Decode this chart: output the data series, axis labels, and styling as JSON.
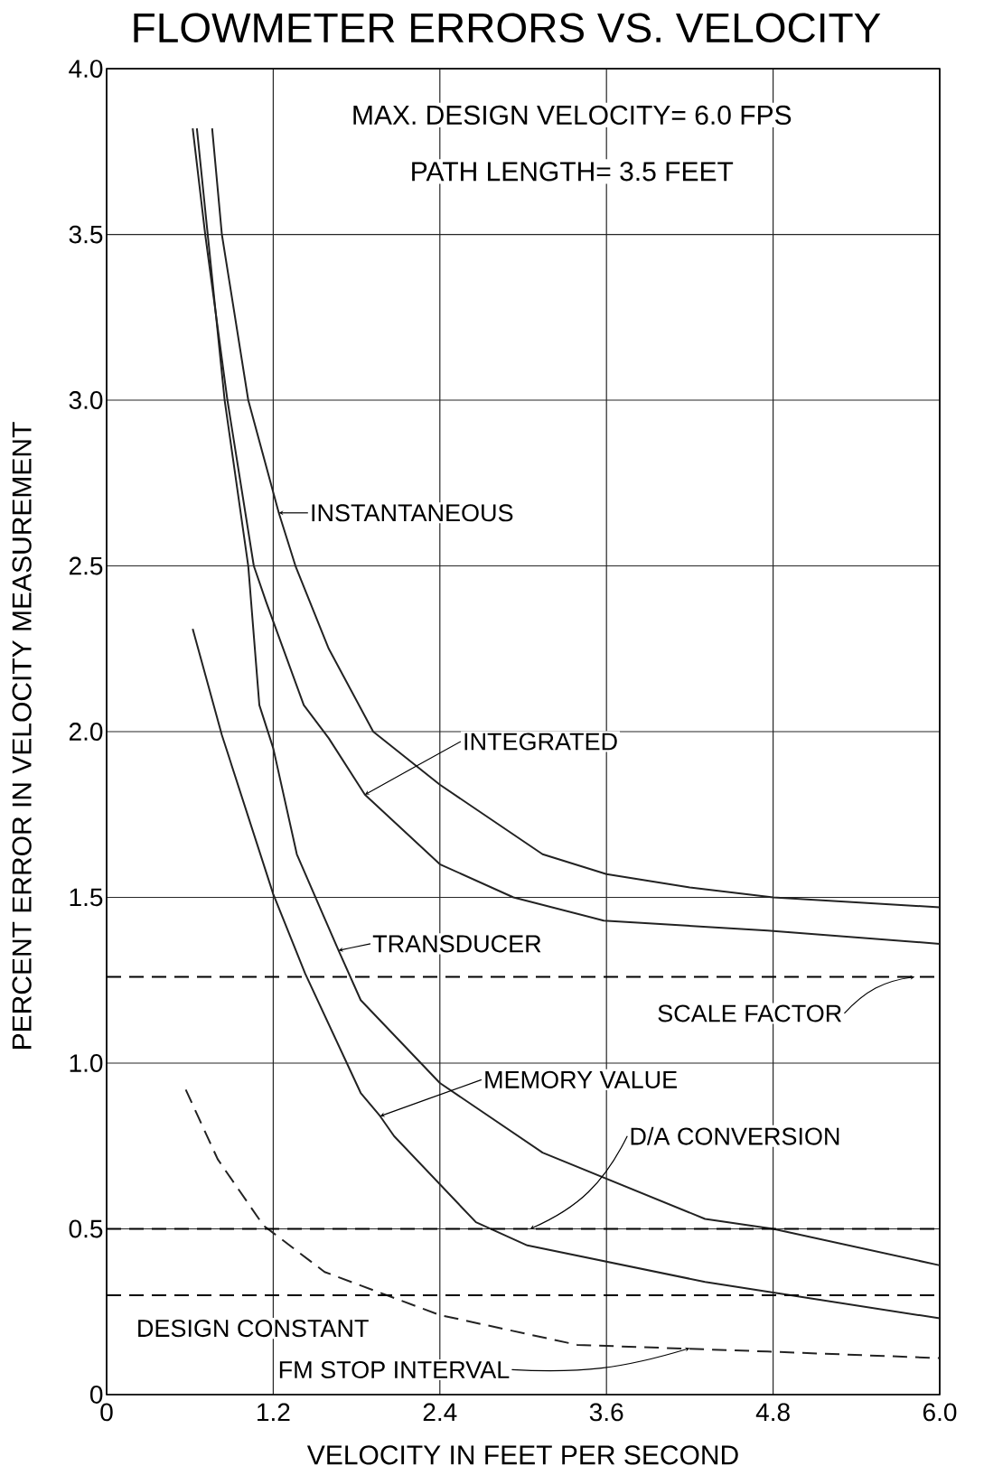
{
  "chart_data": {
    "type": "line",
    "title": "FLOWMETER ERRORS VS. VELOCITY",
    "xlabel": "VELOCITY IN FEET PER SECOND",
    "ylabel": "PERCENT ERROR IN VELOCITY MEASUREMENT",
    "annotations": [
      "MAX. DESIGN VELOCITY= 6.0 FPS",
      "PATH LENGTH= 3.5 FEET",
      {
        "text": "INSTANTANEOUS",
        "x": 1.24,
        "y": 2.66
      },
      {
        "text": "INTEGRATED",
        "x": 1.86,
        "y": 1.81
      },
      {
        "text": "TRANSDUCER",
        "x": 1.67,
        "y": 1.34
      },
      {
        "text": "MEMORY VALUE",
        "x": 1.97,
        "y": 0.84
      },
      {
        "text": "FM STOP INTERVAL",
        "x": 4.2,
        "y": 0.14
      }
    ],
    "xlim": [
      0,
      6
    ],
    "ylim": [
      0,
      4
    ],
    "xticks": [
      0,
      1.2,
      2.4,
      3.6,
      4.8,
      {
        "value": 6,
        "label": "6.0"
      }
    ],
    "yticks": [
      0,
      0.5,
      {
        "value": 1,
        "label": "1.0"
      },
      1.5,
      {
        "value": 2,
        "label": "2.0"
      },
      2.5,
      {
        "value": 3,
        "label": "3.0"
      },
      3.5,
      {
        "value": 4,
        "label": "4.0"
      }
    ],
    "grid": true,
    "series": [
      {
        "color": "#222222",
        "line_style": "solid",
        "x": [
          0.76,
          0.83,
          1.02,
          1.24,
          1.36,
          1.6,
          1.92,
          2.4,
          3.14,
          3.6,
          4.2,
          4.8,
          6.0
        ],
        "values": [
          3.82,
          3.5,
          3.0,
          2.66,
          2.5,
          2.25,
          2.0,
          1.84,
          1.63,
          1.57,
          1.53,
          1.5,
          1.47
        ]
      },
      {
        "color": "#222222",
        "line_style": "solid",
        "x": [
          0.62,
          0.71,
          0.87,
          1.06,
          1.15,
          1.42,
          1.6,
          1.86,
          2.4,
          2.93,
          3.58,
          4.76,
          6.0
        ],
        "values": [
          3.82,
          3.5,
          3.0,
          2.5,
          2.39,
          2.08,
          1.98,
          1.81,
          1.6,
          1.5,
          1.43,
          1.4,
          1.36
        ]
      },
      {
        "color": "#222222",
        "line_style": "solid",
        "x": [
          0.65,
          0.85,
          1.02,
          1.1,
          1.2,
          1.37,
          1.67,
          1.83,
          2.4,
          3.14,
          4.31,
          4.8,
          6.0
        ],
        "values": [
          3.82,
          3.0,
          2.5,
          2.08,
          1.95,
          1.63,
          1.34,
          1.19,
          0.94,
          0.73,
          0.53,
          0.5,
          0.39
        ]
      },
      {
        "color": "#222222",
        "line_style": "solid",
        "x": [
          0.62,
          0.83,
          1.2,
          1.43,
          1.83,
          1.97,
          2.07,
          2.66,
          3.03,
          4.31,
          4.77,
          6.0
        ],
        "values": [
          2.31,
          1.99,
          1.51,
          1.27,
          0.91,
          0.84,
          0.78,
          0.52,
          0.45,
          0.34,
          0.31,
          0.23
        ]
      },
      {
        "color": "#222222",
        "line_style": "dashed",
        "x": [
          0.57,
          0.8,
          1.13,
          1.57,
          2.4,
          3.39,
          4.76,
          6.0
        ],
        "values": [
          0.92,
          0.71,
          0.51,
          0.37,
          0.24,
          0.15,
          0.13,
          0.11
        ]
      }
    ],
    "ref_lines": [
      {
        "axis": "y",
        "value": 1.26,
        "label": "SCALE FACTOR",
        "line_style": "dashed"
      },
      {
        "axis": "y",
        "value": 0.5,
        "label": "D/A CONVERSION",
        "line_style": "dashed"
      },
      {
        "axis": "y",
        "value": 0.3,
        "label": "DESIGN CONSTANT",
        "line_style": "dashed"
      }
    ]
  }
}
